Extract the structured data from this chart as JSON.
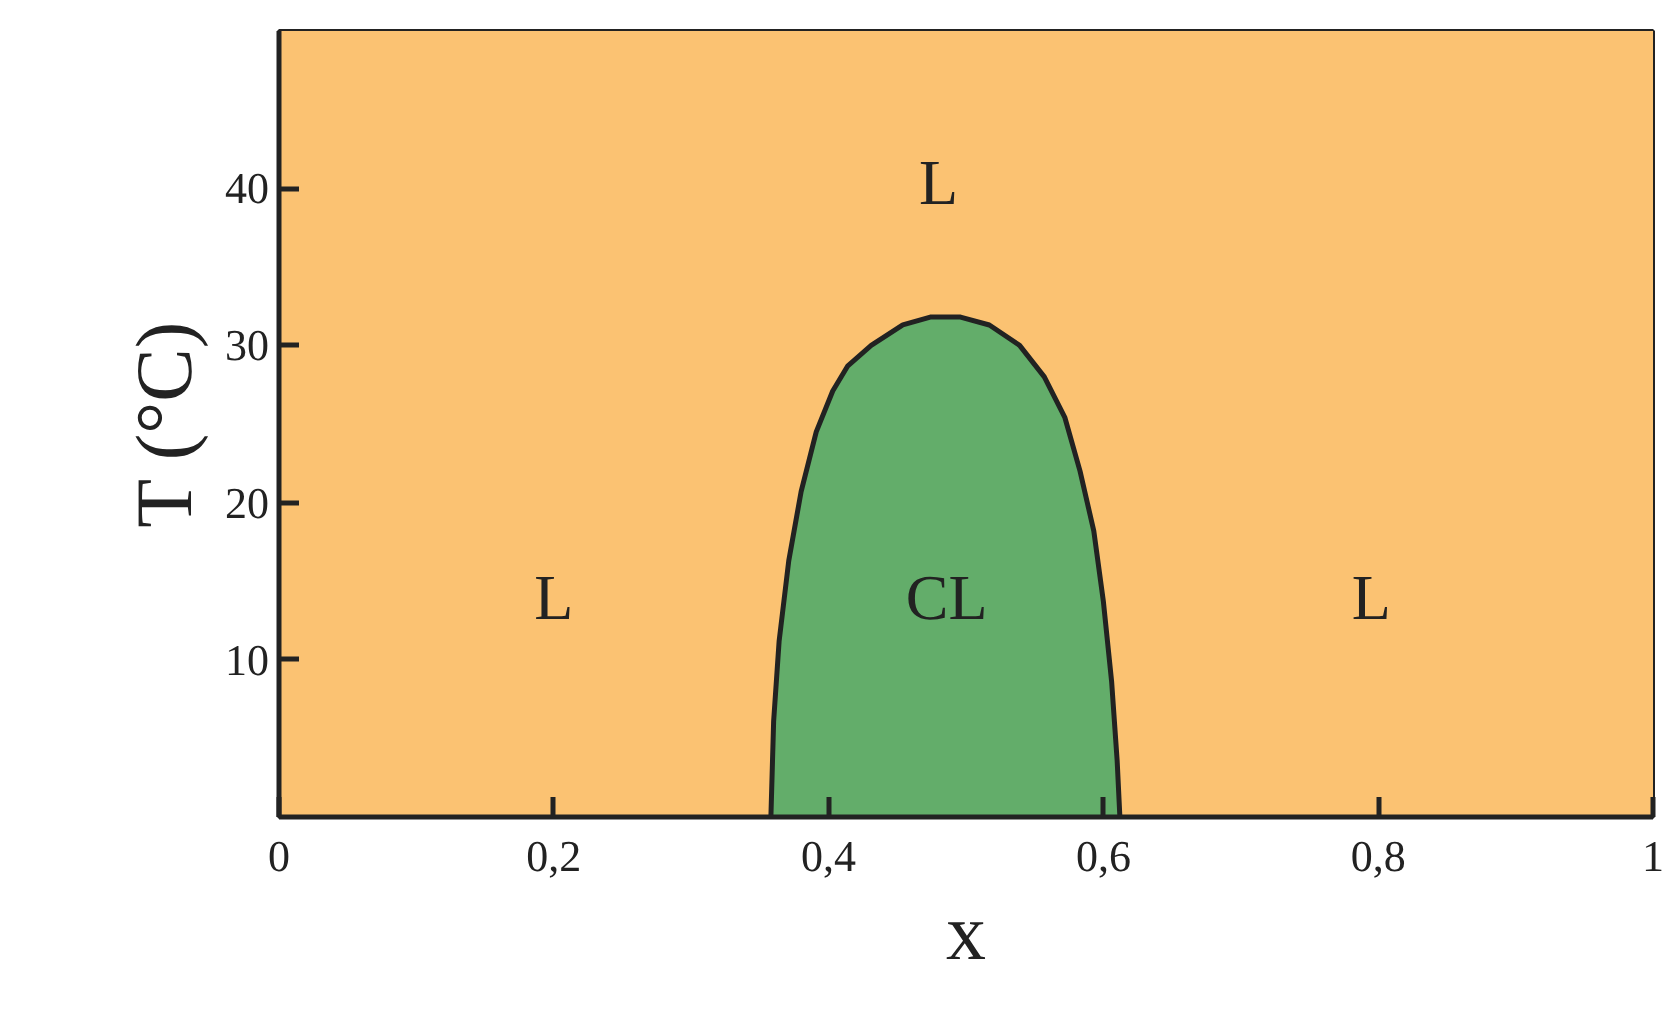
{
  "chart_data": {
    "type": "area",
    "xlabel": "x",
    "ylabel": "T (°C)",
    "xlim": [
      0,
      1
    ],
    "ylim": [
      0,
      50
    ],
    "xticks": [
      0,
      {
        "value": 0.2,
        "label": "0,2"
      },
      {
        "value": 0.4,
        "label": "0,4"
      },
      {
        "value": 0.6,
        "label": "0,6"
      },
      {
        "value": 0.8,
        "label": "0,8"
      },
      1
    ],
    "yticks": [
      10,
      20,
      30,
      40
    ],
    "bands": [
      {
        "axis": "x",
        "from": 0,
        "to": 1,
        "color": "#fbc272"
      }
    ],
    "series": [
      {
        "color": "#63ad6a",
        "x": [
          0.358,
          0.36,
          0.364,
          0.371,
          0.38,
          0.391,
          0.403,
          0.414,
          0.431,
          0.454,
          0.474,
          0.496,
          0.517,
          0.539,
          0.557,
          0.572,
          0.583,
          0.593,
          0.6,
          0.606,
          0.61,
          0.612
        ],
        "values": [
          0,
          6.1,
          11.2,
          16.3,
          20.7,
          24.5,
          27.1,
          28.7,
          30.0,
          31.3,
          31.8,
          31.8,
          31.3,
          30.0,
          28.0,
          25.4,
          22.0,
          18.2,
          13.7,
          8.6,
          3.6,
          0
        ]
      }
    ],
    "annotations": [
      "L",
      "L",
      "CL",
      "L"
    ]
  }
}
